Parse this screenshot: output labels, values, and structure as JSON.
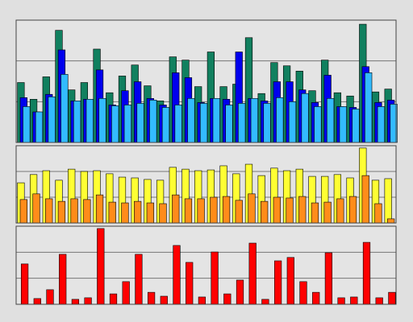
{
  "chart_data": [
    {
      "type": "bar",
      "ylim": [
        0,
        3
      ],
      "yticks": [
        0,
        1,
        2,
        3
      ],
      "grid": true,
      "series": [
        {
          "color": "#11805f",
          "values": [
            1.47,
            1.06,
            1.61,
            2.75,
            1.29,
            1.47,
            2.29,
            1.22,
            1.63,
            1.9,
            1.39,
            1.02,
            2.1,
            2.02,
            1.37,
            2.22,
            1.37,
            1.43,
            2.57,
            1.2,
            1.96,
            1.88,
            1.75,
            1.27,
            2.02,
            1.22,
            1.14,
            2.9,
            1.24,
            1.31
          ]
        },
        {
          "color": "#0000ee",
          "values": [
            1.1,
            0.75,
            1.18,
            2.27,
            1.02,
            1.06,
            1.78,
            0.92,
            1.27,
            1.49,
            1.08,
            0.92,
            1.71,
            1.59,
            0.98,
            1.08,
            1.06,
            2.22,
            1.08,
            1.02,
            1.49,
            1.49,
            1.29,
            0.98,
            1.65,
            0.88,
            0.86,
            1.86,
            0.98,
            1.04
          ]
        },
        {
          "color": "#33bbff",
          "values": [
            0.88,
            0.75,
            1.12,
            1.67,
            1.02,
            1.06,
            1.08,
            0.9,
            0.92,
            0.96,
            1.04,
            0.86,
            0.92,
            1.08,
            0.96,
            1.08,
            0.92,
            0.96,
            1.08,
            0.96,
            1.1,
            1.0,
            1.2,
            0.88,
            1.08,
            0.88,
            0.82,
            1.71,
            0.88,
            0.94
          ]
        }
      ]
    },
    {
      "type": "bar",
      "ylim": [
        0,
        3
      ],
      "yticks": [
        0,
        1,
        2,
        3
      ],
      "grid": true,
      "series": [
        {
          "color": "#ffff33",
          "values": [
            1.56,
            1.88,
            2.03,
            1.66,
            2.09,
            2.0,
            2.03,
            1.91,
            1.78,
            1.75,
            1.69,
            1.66,
            2.16,
            2.09,
            2.03,
            2.06,
            2.22,
            1.91,
            2.28,
            1.84,
            2.13,
            2.03,
            2.09,
            1.81,
            1.81,
            1.88,
            1.75,
            2.91,
            1.66,
            1.72
          ]
        },
        {
          "color": "#ff8c1a",
          "values": [
            0.91,
            1.13,
            0.94,
            0.84,
            0.94,
            0.91,
            1.09,
            0.81,
            0.78,
            0.84,
            0.78,
            0.75,
            1.09,
            0.94,
            0.94,
            1.0,
            1.03,
            0.88,
            1.13,
            0.84,
            1.0,
            0.97,
            1.03,
            0.78,
            0.81,
            0.94,
            1.03,
            1.84,
            0.75,
            0.16
          ]
        }
      ]
    },
    {
      "type": "bar",
      "ylim": [
        0,
        3
      ],
      "yticks": [
        0,
        1,
        2,
        3
      ],
      "grid": true,
      "series": [
        {
          "color": "#ff0000",
          "values": [
            1.55,
            0.22,
            0.56,
            1.92,
            0.19,
            0.25,
            2.91,
            0.4,
            0.87,
            1.92,
            0.46,
            0.31,
            2.26,
            1.61,
            0.28,
            2.01,
            0.4,
            0.93,
            2.35,
            0.19,
            1.67,
            1.8,
            0.87,
            0.46,
            1.98,
            0.25,
            0.28,
            2.38,
            0.25,
            0.46
          ]
        }
      ]
    }
  ]
}
